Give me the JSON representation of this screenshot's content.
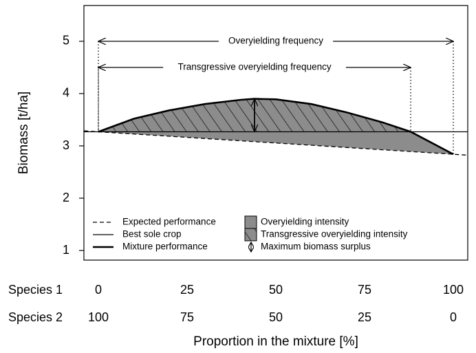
{
  "chart_data": {
    "type": "line",
    "ylabel": "Biomass [t/ha]",
    "xlabel": "Proportion in the mixture [%]",
    "xlim": [
      -4.07,
      104.07
    ],
    "ylim": [
      0.816,
      5.684
    ],
    "yticks": [
      1,
      2,
      3,
      4,
      5
    ],
    "xtick_row_labels": [
      "Species 1",
      "Species 2"
    ],
    "xticks": [
      0,
      25,
      50,
      75,
      100
    ],
    "xticks2": [
      {
        "value": 0,
        "label": "100"
      },
      {
        "value": 25,
        "label": "75"
      },
      {
        "value": 50,
        "label": "50"
      },
      {
        "value": 75,
        "label": "25"
      },
      {
        "value": 100,
        "label": "0"
      }
    ],
    "series": [
      {
        "name": "Expected performance",
        "color": "#000000",
        "style": "dashed",
        "x": [
          -4,
          104
        ],
        "values": [
          3.287,
          2.823
        ]
      },
      {
        "name": "Best sole crop",
        "color": "#000000",
        "style": "thin",
        "x": [
          -4,
          104
        ],
        "values": [
          3.27,
          3.27
        ]
      },
      {
        "name": "Mixture performance",
        "color": "#000000",
        "style": "thick",
        "x": [
          0,
          10,
          20,
          30,
          40,
          44,
          50,
          60,
          70,
          80,
          88,
          100
        ],
        "values": [
          3.27,
          3.52,
          3.68,
          3.8,
          3.88,
          3.9,
          3.89,
          3.8,
          3.64,
          3.45,
          3.27,
          2.84
        ]
      }
    ],
    "areas": [
      {
        "name": "Overyielding intensity",
        "color": "#8c8c8c"
      },
      {
        "name": "Transgressive overyielding intensity",
        "color": "#8c8c8c"
      }
    ],
    "max_surplus": {
      "name": "Maximum biomass surplus",
      "x": 44,
      "y": [
        3.27,
        3.9
      ]
    },
    "annotations": [
      {
        "text": "Overyielding frequency",
        "x": [
          0,
          100
        ],
        "y": 5
      },
      {
        "text": "Transgressive overyielding frequency",
        "x": [
          0,
          88
        ],
        "y": 4.5
      }
    ]
  }
}
